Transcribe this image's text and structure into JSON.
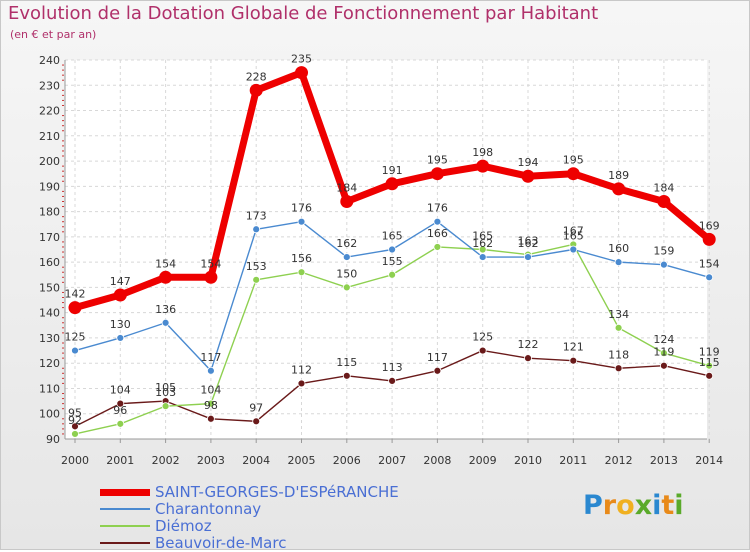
{
  "chart_data": {
    "type": "line",
    "title": "Evolution de la Dotation Globale de Fonctionnement par Habitant",
    "subtitle": "(en € et par an)",
    "xlabel": "",
    "ylabel": "",
    "ylim": [
      90,
      240
    ],
    "yticks": [
      "90",
      "100",
      "110",
      "120",
      "130",
      "140",
      "150",
      "160",
      "170",
      "180",
      "190",
      "200",
      "210",
      "220",
      "230",
      "240"
    ],
    "categories": [
      "2000",
      "2001",
      "2002",
      "2003",
      "2004",
      "2005",
      "2006",
      "2007",
      "2008",
      "2009",
      "2010",
      "2011",
      "2012",
      "2013",
      "2014"
    ],
    "grid": true,
    "legend_position": "bottom-left",
    "series": [
      {
        "name": "SAINT-GEORGES-D'ESPéRANCHE",
        "color": "#ee0000",
        "values": [
          142,
          147,
          154,
          154,
          228,
          235,
          184,
          191,
          195,
          198,
          194,
          195,
          189,
          184,
          169
        ],
        "labels": [
          "142",
          "147",
          "154",
          "154",
          "228",
          "235",
          "184",
          "191",
          "195",
          "198",
          "194",
          "195",
          "189",
          "184",
          "169"
        ]
      },
      {
        "name": "Charantonnay",
        "color": "#4a8ad0",
        "values": [
          125,
          130,
          136,
          117,
          173,
          176,
          162,
          165,
          176,
          162,
          162,
          165,
          160,
          159,
          154
        ],
        "labels": [
          "125",
          "130",
          "136",
          "117",
          "173",
          "176",
          "162",
          "165",
          "176",
          "162",
          "162",
          "165",
          "160",
          "159",
          "154"
        ]
      },
      {
        "name": "Diémoz",
        "color": "#8ed050",
        "values": [
          92,
          96,
          103,
          104,
          153,
          156,
          150,
          155,
          166,
          165,
          163,
          167,
          134,
          124,
          119
        ],
        "labels": [
          "92",
          "96",
          "103",
          "104",
          "153",
          "156",
          "150",
          "155",
          "166",
          "165",
          "163",
          "167",
          "134",
          "124",
          "119"
        ]
      },
      {
        "name": "Beauvoir-de-Marc",
        "color": "#6a1a1a",
        "values": [
          95,
          104,
          105,
          98,
          97,
          112,
          115,
          113,
          117,
          125,
          122,
          121,
          118,
          119,
          115
        ],
        "labels": [
          "95",
          "104",
          "105",
          "98",
          "97",
          "112",
          "115",
          "113",
          "117",
          "125",
          "122",
          "121",
          "118",
          "119",
          "115"
        ]
      }
    ]
  },
  "logo": {
    "text": "Proxiti"
  }
}
